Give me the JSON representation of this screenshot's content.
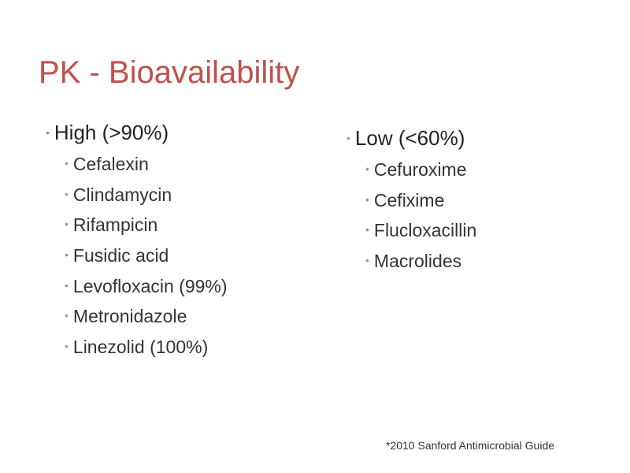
{
  "title": "PK - Bioavailability",
  "columns": [
    {
      "heading": "High (>90%)",
      "items": [
        "Cefalexin",
        "Clindamycin",
        "Rifampicin",
        "Fusidic acid",
        "Levofloxacin (99%)",
        "Metronidazole",
        "Linezolid (100%)"
      ]
    },
    {
      "heading": "Low (<60%)",
      "items": [
        "Cefuroxime",
        "Cefixime",
        "Flucloxacillin",
        "Macrolides"
      ]
    }
  ],
  "footnote": "*2010 Sanford Antimicrobial Guide"
}
